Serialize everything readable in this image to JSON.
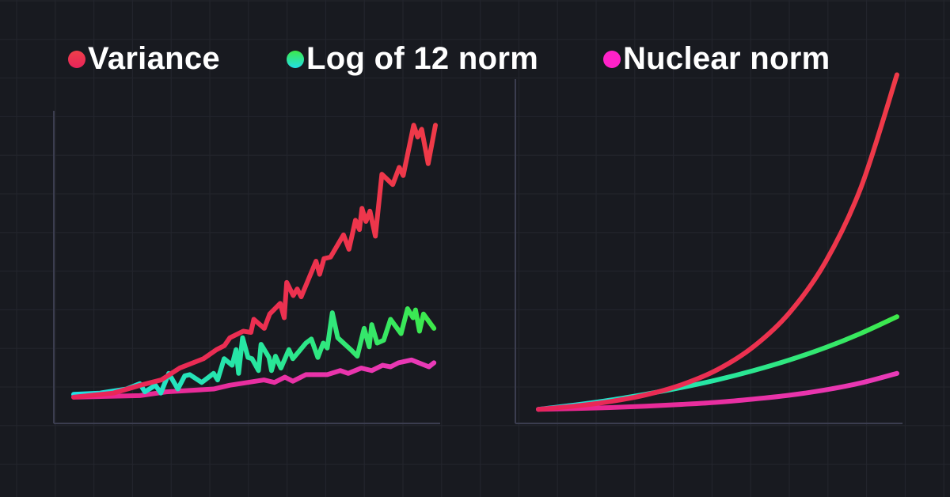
{
  "colors": {
    "background": "#181a20",
    "grid": "#23252d",
    "axis": "#3b3d4f",
    "variance": "#ef3a48",
    "variance_start": "#e8245a",
    "log_l2_start": "#22e0e6",
    "log_l2_end": "#3de84a",
    "nuclear": "#e930b0",
    "nuclear_dot": "#ff22c8"
  },
  "legend": [
    {
      "label": "Variance",
      "key": "variance"
    },
    {
      "label": "Log of 12 norm",
      "key": "log_l2"
    },
    {
      "label": "Nuclear norm",
      "key": "nuclear"
    }
  ],
  "chart_data": [
    {
      "type": "line",
      "title": "",
      "xlabel": "",
      "ylabel": "",
      "xlim": [
        0,
        100
      ],
      "ylim": [
        0,
        100
      ],
      "grid": true,
      "legend_placement": "top",
      "ticks": false,
      "series": [
        {
          "name": "Variance",
          "key": "variance",
          "points": [
            [
              0,
              8.4
            ],
            [
              11,
              9.7
            ],
            [
              18.4,
              12.2
            ],
            [
              24.2,
              13.9
            ],
            [
              29.3,
              17.7
            ],
            [
              35.9,
              20.7
            ],
            [
              39.5,
              23.6
            ],
            [
              41.7,
              24.9
            ],
            [
              43.2,
              27.4
            ],
            [
              46.9,
              29.5
            ],
            [
              49,
              29.1
            ],
            [
              49.8,
              33.3
            ],
            [
              52.7,
              30.4
            ],
            [
              54.2,
              35
            ],
            [
              57.1,
              38.4
            ],
            [
              58.2,
              33.8
            ],
            [
              58.9,
              45.1
            ],
            [
              60.7,
              40.9
            ],
            [
              61.8,
              43
            ],
            [
              62.9,
              40.5
            ],
            [
              67,
              51.9
            ],
            [
              68,
              47.7
            ],
            [
              69.2,
              52.7
            ],
            [
              71,
              53.2
            ],
            [
              74.6,
              60.3
            ],
            [
              76.1,
              55.7
            ],
            [
              77.9,
              65
            ],
            [
              79,
              62
            ],
            [
              79.7,
              68.8
            ],
            [
              80.8,
              64.6
            ],
            [
              81.9,
              67.9
            ],
            [
              83.4,
              59.9
            ],
            [
              85.2,
              79.7
            ],
            [
              88.2,
              76.4
            ],
            [
              90,
              81.9
            ],
            [
              91.1,
              79.3
            ],
            [
              94,
              95.4
            ],
            [
              95.1,
              91.6
            ],
            [
              96.2,
              94.1
            ],
            [
              98,
              83.1
            ],
            [
              100,
              95.4
            ]
          ]
        },
        {
          "name": "Log of 12 norm",
          "key": "log_l2",
          "points": [
            [
              0,
              9.3
            ],
            [
              7.3,
              9.7
            ],
            [
              14.6,
              11
            ],
            [
              18.3,
              12.7
            ],
            [
              19.7,
              10.1
            ],
            [
              22.6,
              12.2
            ],
            [
              24.1,
              9.7
            ],
            [
              26.3,
              16
            ],
            [
              28.8,
              11
            ],
            [
              30.7,
              15.2
            ],
            [
              32.1,
              15.6
            ],
            [
              35.4,
              13.1
            ],
            [
              38.7,
              16
            ],
            [
              39.8,
              13.9
            ],
            [
              41.6,
              20.7
            ],
            [
              43.8,
              18.6
            ],
            [
              44.9,
              23.6
            ],
            [
              45.6,
              16
            ],
            [
              46.7,
              27.4
            ],
            [
              48.2,
              21.1
            ],
            [
              49.3,
              20.7
            ],
            [
              51.1,
              16.9
            ],
            [
              51.8,
              25.3
            ],
            [
              54,
              21.1
            ],
            [
              54.7,
              16.9
            ],
            [
              55.8,
              21.5
            ],
            [
              57.3,
              17.7
            ],
            [
              59.5,
              23.6
            ],
            [
              60.6,
              20.7
            ],
            [
              64.2,
              25.7
            ],
            [
              65.7,
              27
            ],
            [
              67.5,
              21.1
            ],
            [
              69,
              25.7
            ],
            [
              70.1,
              24.1
            ],
            [
              71.5,
              35.4
            ],
            [
              73,
              27.4
            ],
            [
              76.6,
              23.6
            ],
            [
              78.4,
              21.5
            ],
            [
              80.3,
              30.4
            ],
            [
              81.7,
              24.5
            ],
            [
              82.4,
              31.6
            ],
            [
              83.9,
              25.7
            ],
            [
              85.7,
              26.6
            ],
            [
              87.6,
              33.3
            ],
            [
              90.5,
              28.7
            ],
            [
              92.3,
              36.7
            ],
            [
              93.8,
              33.8
            ],
            [
              94.5,
              36.3
            ],
            [
              95.6,
              29.5
            ],
            [
              96.7,
              35
            ],
            [
              99.6,
              30.4
            ]
          ]
        },
        {
          "name": "Nuclear norm",
          "key": "nuclear",
          "points": [
            [
              0,
              8.4
            ],
            [
              18.3,
              8.9
            ],
            [
              25.6,
              10.1
            ],
            [
              38.7,
              11
            ],
            [
              43.1,
              12.2
            ],
            [
              52.6,
              13.9
            ],
            [
              55.5,
              13.1
            ],
            [
              58.4,
              14.8
            ],
            [
              60.6,
              13.5
            ],
            [
              64.2,
              15.6
            ],
            [
              70.1,
              15.6
            ],
            [
              73.7,
              16.9
            ],
            [
              75.9,
              16
            ],
            [
              79.5,
              17.7
            ],
            [
              82.4,
              16.9
            ],
            [
              85.4,
              18.6
            ],
            [
              87.6,
              18.1
            ],
            [
              89.8,
              19.4
            ],
            [
              93.4,
              20.3
            ],
            [
              98.2,
              18.1
            ],
            [
              99.6,
              19.4
            ]
          ]
        }
      ]
    },
    {
      "type": "line",
      "title": "",
      "xlabel": "",
      "ylabel": "",
      "xlim": [
        0,
        100
      ],
      "ylim": [
        0,
        100
      ],
      "grid": true,
      "ticks": false,
      "x": [
        0,
        10,
        20,
        30,
        40,
        50,
        60,
        70,
        80,
        90,
        100
      ],
      "series": [
        {
          "name": "Variance",
          "key": "variance",
          "values": [
            4,
            4.9,
            6.2,
            8.1,
            11.0,
            15.3,
            21.8,
            31.4,
            45.7,
            67.1,
            99
          ]
        },
        {
          "name": "Log of 12 norm",
          "key": "log_l2",
          "values": [
            4,
            5.2,
            6.6,
            8.3,
            10.2,
            12.4,
            15.0,
            18.0,
            21.5,
            25.6,
            30.3
          ]
        },
        {
          "name": "Nuclear norm",
          "key": "nuclear",
          "values": [
            4,
            4.2,
            4.5,
            4.9,
            5.4,
            6.0,
            6.9,
            8.0,
            9.5,
            11.5,
            14.2
          ]
        }
      ]
    }
  ]
}
